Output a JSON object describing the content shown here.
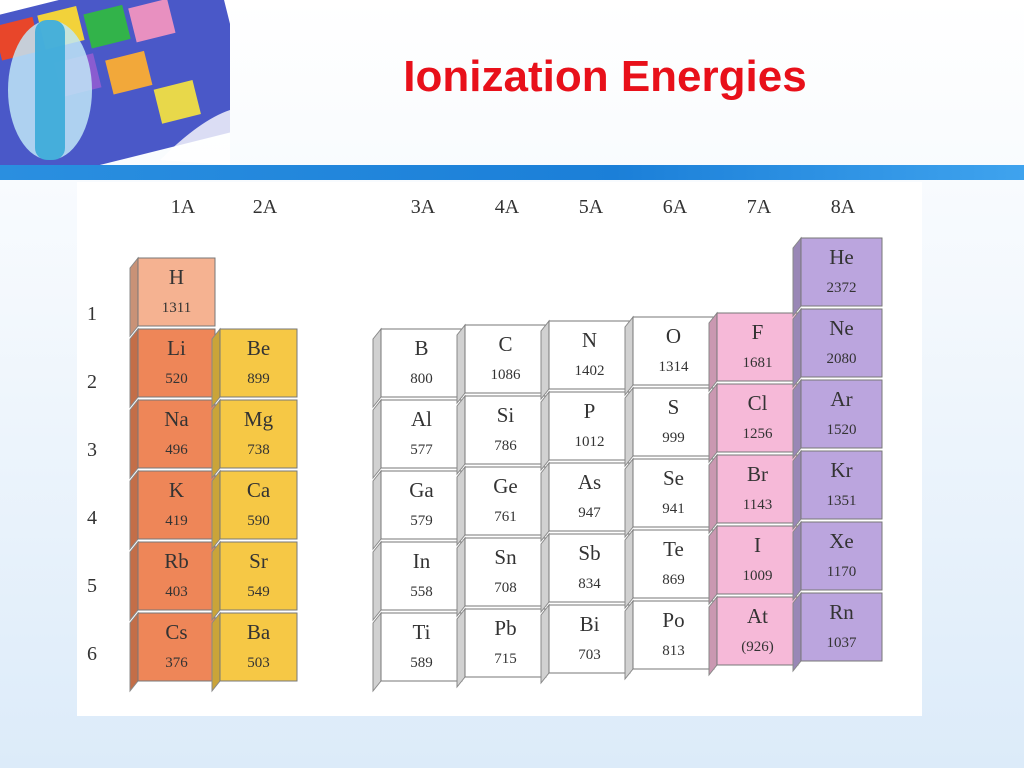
{
  "title": "Ionization Energies",
  "periods": [
    "1",
    "2",
    "3",
    "4",
    "5",
    "6"
  ],
  "columns": [
    {
      "group": "1A",
      "color": "#ee8658",
      "elements": [
        {
          "symbol": "H",
          "energy": "1311",
          "color": "#f5b291"
        },
        {
          "symbol": "Li",
          "energy": "520"
        },
        {
          "symbol": "Na",
          "energy": "496"
        },
        {
          "symbol": "K",
          "energy": "419"
        },
        {
          "symbol": "Rb",
          "energy": "403"
        },
        {
          "symbol": "Cs",
          "energy": "376"
        }
      ]
    },
    {
      "group": "2A",
      "color": "#f6c845",
      "elements": [
        {
          "symbol": "Be",
          "energy": "899"
        },
        {
          "symbol": "Mg",
          "energy": "738"
        },
        {
          "symbol": "Ca",
          "energy": "590"
        },
        {
          "symbol": "Sr",
          "energy": "549"
        },
        {
          "symbol": "Ba",
          "energy": "503"
        }
      ]
    },
    {
      "group": "3A",
      "color": "#ffffff",
      "elements": [
        {
          "symbol": "B",
          "energy": "800"
        },
        {
          "symbol": "Al",
          "energy": "577"
        },
        {
          "symbol": "Ga",
          "energy": "579"
        },
        {
          "symbol": "In",
          "energy": "558"
        },
        {
          "symbol": "Ti",
          "energy": "589"
        }
      ]
    },
    {
      "group": "4A",
      "color": "#ffffff",
      "elements": [
        {
          "symbol": "C",
          "energy": "1086"
        },
        {
          "symbol": "Si",
          "energy": "786"
        },
        {
          "symbol": "Ge",
          "energy": "761"
        },
        {
          "symbol": "Sn",
          "energy": "708"
        },
        {
          "symbol": "Pb",
          "energy": "715"
        }
      ]
    },
    {
      "group": "5A",
      "color": "#ffffff",
      "elements": [
        {
          "symbol": "N",
          "energy": "1402"
        },
        {
          "symbol": "P",
          "energy": "1012"
        },
        {
          "symbol": "As",
          "energy": "947"
        },
        {
          "symbol": "Sb",
          "energy": "834"
        },
        {
          "symbol": "Bi",
          "energy": "703"
        }
      ]
    },
    {
      "group": "6A",
      "color": "#ffffff",
      "elements": [
        {
          "symbol": "O",
          "energy": "1314"
        },
        {
          "symbol": "S",
          "energy": "999"
        },
        {
          "symbol": "Se",
          "energy": "941"
        },
        {
          "symbol": "Te",
          "energy": "869"
        },
        {
          "symbol": "Po",
          "energy": "813"
        }
      ]
    },
    {
      "group": "7A",
      "color": "#f6b9d8",
      "elements": [
        {
          "symbol": "F",
          "energy": "1681"
        },
        {
          "symbol": "Cl",
          "energy": "1256"
        },
        {
          "symbol": "Br",
          "energy": "1143"
        },
        {
          "symbol": "I",
          "energy": "1009"
        },
        {
          "symbol": "At",
          "energy": "(926)"
        }
      ]
    },
    {
      "group": "8A",
      "color": "#bba5de",
      "elements": [
        {
          "symbol": "He",
          "energy": "2372"
        },
        {
          "symbol": "Ne",
          "energy": "2080"
        },
        {
          "symbol": "Ar",
          "energy": "1520"
        },
        {
          "symbol": "Kr",
          "energy": "1351"
        },
        {
          "symbol": "Xe",
          "energy": "1170"
        },
        {
          "symbol": "Rn",
          "energy": "1037"
        }
      ]
    }
  ]
}
